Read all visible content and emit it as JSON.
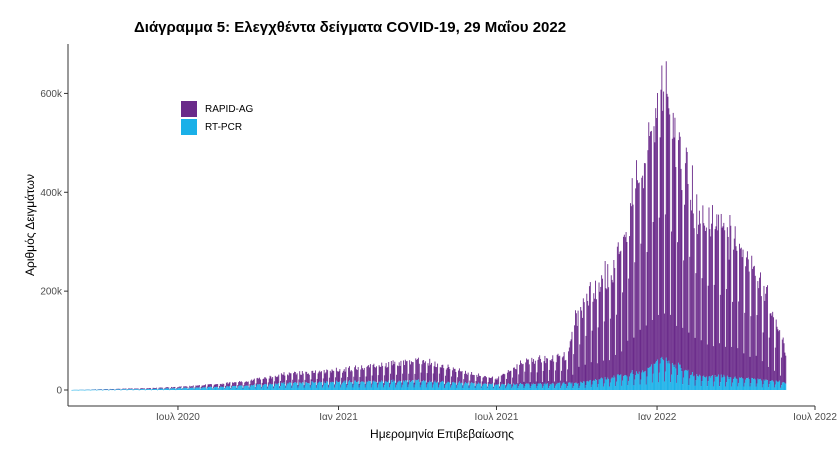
{
  "chart_data": {
    "type": "bar",
    "title": "Διάγραμμα 5: Ελεγχθέντα δείγματα COVID-19, 29 Μαΐου 2022",
    "xlabel": "Ημερομηνία Επιβεβαίωσης",
    "ylabel": "Αριθμός Δειγμάτων",
    "ylim": [
      0,
      700000
    ],
    "xlim": [
      "2020-02-26",
      "2022-07-01"
    ],
    "stacked": true,
    "grid": false,
    "legend_position": "top-left",
    "x_ticks": [
      {
        "date": "2020-07-01",
        "label": "Ιουλ 2020"
      },
      {
        "date": "2021-01-01",
        "label": "Ιαν 2021"
      },
      {
        "date": "2021-07-01",
        "label": "Ιουλ 2021"
      },
      {
        "date": "2022-01-01",
        "label": "Ιαν 2022"
      },
      {
        "date": "2022-07-01",
        "label": "Ιουλ 2022"
      }
    ],
    "y_ticks": [
      {
        "value": 0,
        "label": "0"
      },
      {
        "value": 200000,
        "label": "200k"
      },
      {
        "value": 400000,
        "label": "400k"
      },
      {
        "value": 600000,
        "label": "600k"
      }
    ],
    "x_daily": [
      "2020-03-01",
      "2022-05-28"
    ],
    "series": [
      {
        "name": "RAPID-AG",
        "color": "#6a2a8a",
        "points": [
          [
            "2020-03-01",
            0
          ],
          [
            "2020-07-01",
            3000
          ],
          [
            "2020-09-15",
            10000
          ],
          [
            "2020-11-01",
            22000
          ],
          [
            "2021-01-01",
            28000
          ],
          [
            "2021-03-01",
            42000
          ],
          [
            "2021-04-15",
            48000
          ],
          [
            "2021-06-01",
            22000
          ],
          [
            "2021-07-01",
            14000
          ],
          [
            "2021-08-01",
            55000
          ],
          [
            "2021-09-20",
            65000
          ],
          [
            "2021-10-01",
            170000
          ],
          [
            "2021-11-15",
            270000
          ],
          [
            "2021-12-10",
            500000
          ],
          [
            "2022-01-10",
            620000
          ],
          [
            "2022-02-15",
            400000
          ],
          [
            "2022-03-25",
            340000
          ],
          [
            "2022-04-25",
            260000
          ],
          [
            "2022-05-28",
            80000
          ]
        ]
      },
      {
        "name": "RT-PCR",
        "color": "#1ab0e8",
        "points": [
          [
            "2020-03-01",
            400
          ],
          [
            "2020-06-01",
            2500
          ],
          [
            "2020-09-01",
            9000
          ],
          [
            "2020-11-15",
            18000
          ],
          [
            "2021-01-01",
            20000
          ],
          [
            "2021-04-01",
            22000
          ],
          [
            "2021-07-01",
            14000
          ],
          [
            "2021-10-01",
            16000
          ],
          [
            "2021-12-15",
            45000
          ],
          [
            "2022-01-05",
            75000
          ],
          [
            "2022-02-15",
            35000
          ],
          [
            "2022-04-15",
            28000
          ],
          [
            "2022-05-28",
            18000
          ]
        ]
      }
    ]
  }
}
